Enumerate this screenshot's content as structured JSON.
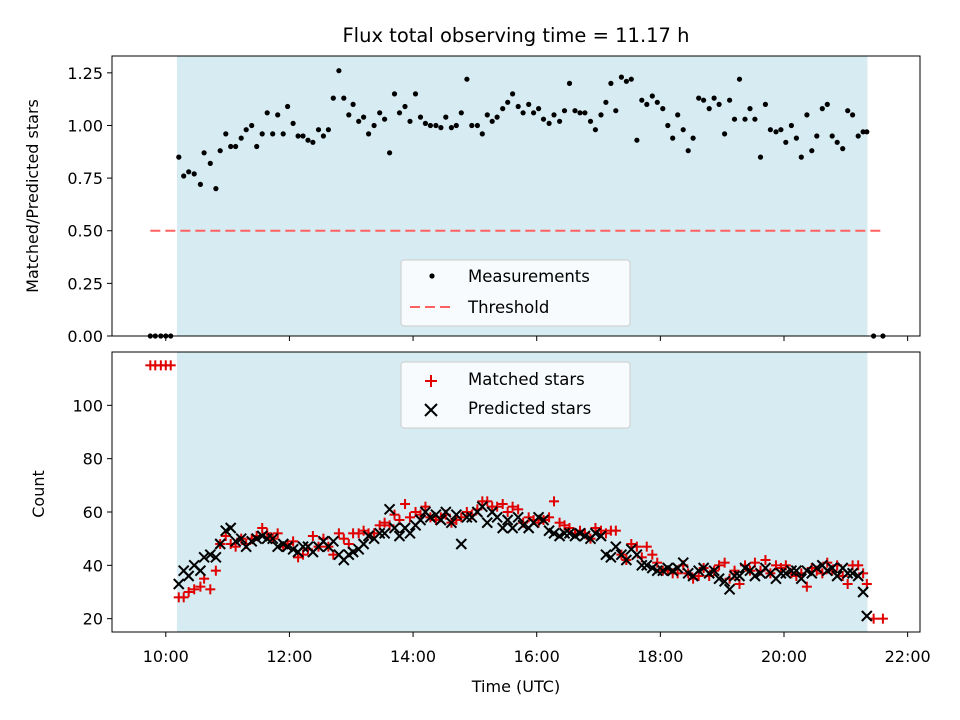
{
  "title": "Flux total observing time = 11.17 h",
  "xlabel": "Time (UTC)",
  "x_ticks": [
    "10:00",
    "12:00",
    "14:00",
    "16:00",
    "18:00",
    "20:00",
    "22:00"
  ],
  "colors": {
    "shade": "#add8e6",
    "measurement": "#000000",
    "threshold": "#ff6060",
    "matched": "#e00000",
    "predicted": "#000000"
  },
  "chart_data": [
    {
      "type": "scatter",
      "ylabel": "Matched/Predicted stars",
      "xlim_hours": [
        9.13,
        22.2
      ],
      "ylim": [
        0,
        1.33
      ],
      "y_ticks": [
        "0.00",
        "0.25",
        "0.50",
        "0.75",
        "1.00",
        "1.25"
      ],
      "y_tick_values": [
        0,
        0.25,
        0.5,
        0.75,
        1.0,
        1.25
      ],
      "observing_window_hours": [
        10.18,
        21.35
      ],
      "legend_placement": "lower center",
      "legend": [
        "Measurements",
        "Threshold"
      ],
      "threshold": {
        "name": "Threshold",
        "value": 0.5,
        "x_range_hours": [
          9.75,
          21.6
        ]
      },
      "series": [
        {
          "name": "Measurements",
          "x_hours": [
            9.75,
            9.83,
            9.92,
            10.0,
            10.08,
            10.21,
            10.29,
            10.37,
            10.46,
            10.56,
            10.62,
            10.72,
            10.81,
            10.88,
            10.97,
            11.05,
            11.13,
            11.22,
            11.3,
            11.39,
            11.47,
            11.56,
            11.64,
            11.73,
            11.81,
            11.9,
            11.97,
            12.06,
            12.14,
            12.22,
            12.3,
            12.38,
            12.47,
            12.55,
            12.63,
            12.71,
            12.8,
            12.88,
            12.96,
            13.03,
            13.12,
            13.2,
            13.28,
            13.37,
            13.46,
            13.54,
            13.62,
            13.7,
            13.78,
            13.87,
            13.95,
            14.04,
            14.12,
            14.2,
            14.28,
            14.37,
            14.45,
            14.53,
            14.62,
            14.7,
            14.78,
            14.87,
            14.95,
            15.04,
            15.12,
            15.2,
            15.28,
            15.36,
            15.45,
            15.53,
            15.61,
            15.7,
            15.78,
            15.87,
            15.95,
            16.03,
            16.11,
            16.2,
            16.28,
            16.37,
            16.45,
            16.53,
            16.62,
            16.7,
            16.78,
            16.87,
            16.95,
            17.04,
            17.12,
            17.2,
            17.28,
            17.37,
            17.45,
            17.53,
            17.62,
            17.7,
            17.78,
            17.87,
            17.95,
            18.04,
            18.12,
            18.2,
            18.28,
            18.37,
            18.45,
            18.53,
            18.62,
            18.7,
            18.79,
            18.87,
            18.95,
            19.04,
            19.12,
            19.2,
            19.28,
            19.37,
            19.45,
            19.53,
            19.62,
            19.7,
            19.78,
            19.87,
            19.95,
            20.03,
            20.12,
            20.2,
            20.28,
            20.37,
            20.45,
            20.53,
            20.62,
            20.7,
            20.78,
            20.86,
            20.95,
            21.03,
            21.11,
            21.2,
            21.28,
            21.34,
            21.45,
            21.6
          ],
          "values": [
            0,
            0,
            0,
            0,
            0,
            0.85,
            0.76,
            0.78,
            0.77,
            0.72,
            0.87,
            0.82,
            0.7,
            0.88,
            0.96,
            0.9,
            0.9,
            0.94,
            0.98,
            1.0,
            0.9,
            0.96,
            1.06,
            0.96,
            1.05,
            0.96,
            1.09,
            1.01,
            0.95,
            0.95,
            0.93,
            0.92,
            0.98,
            0.95,
            0.98,
            1.13,
            1.26,
            1.13,
            1.05,
            1.1,
            1.02,
            1.04,
            0.96,
            1.0,
            1.06,
            1.03,
            0.87,
            1.15,
            1.06,
            1.09,
            1.02,
            1.15,
            1.04,
            1.01,
            1.0,
            1.0,
            0.99,
            1.04,
            0.99,
            1.0,
            1.06,
            1.22,
            1.0,
            1.0,
            0.96,
            1.05,
            1.02,
            1.04,
            1.08,
            1.11,
            1.15,
            1.09,
            1.06,
            1.1,
            1.06,
            1.08,
            1.03,
            1.01,
            1.05,
            1.02,
            1.07,
            1.2,
            1.07,
            1.06,
            1.06,
            1.02,
            0.98,
            1.05,
            1.11,
            1.2,
            1.07,
            1.23,
            1.21,
            1.22,
            0.93,
            1.12,
            1.1,
            1.14,
            1.11,
            1.08,
            1.0,
            0.94,
            1.05,
            0.98,
            0.88,
            0.94,
            1.13,
            1.12,
            1.08,
            1.13,
            1.1,
            0.96,
            1.12,
            1.03,
            1.22,
            1.03,
            1.08,
            1.03,
            0.85,
            1.1,
            0.98,
            0.97,
            0.98,
            0.92,
            1.0,
            0.94,
            0.85,
            1.05,
            0.88,
            0.95,
            1.08,
            1.1,
            0.95,
            0.92,
            0.89,
            1.07,
            1.05,
            0.95,
            0.97,
            0.97,
            0.0,
            0.0
          ]
        }
      ]
    },
    {
      "type": "scatter",
      "ylabel": "Count",
      "xlim_hours": [
        9.13,
        22.2
      ],
      "ylim": [
        15,
        120
      ],
      "y_ticks": [
        "20",
        "40",
        "60",
        "80",
        "100"
      ],
      "y_tick_values": [
        20,
        40,
        60,
        80,
        100
      ],
      "observing_window_hours": [
        10.18,
        21.35
      ],
      "legend_placement": "upper center",
      "legend": [
        "Matched stars",
        "Predicted stars"
      ],
      "series": [
        {
          "name": "Matched stars",
          "x_hours": [
            9.75,
            9.83,
            9.92,
            10.0,
            10.08,
            10.21,
            10.29,
            10.37,
            10.46,
            10.56,
            10.62,
            10.72,
            10.81,
            10.88,
            10.97,
            11.05,
            11.13,
            11.22,
            11.3,
            11.39,
            11.47,
            11.56,
            11.64,
            11.73,
            11.81,
            11.9,
            11.97,
            12.06,
            12.14,
            12.22,
            12.3,
            12.38,
            12.47,
            12.55,
            12.63,
            12.71,
            12.8,
            12.88,
            12.96,
            13.03,
            13.12,
            13.2,
            13.28,
            13.37,
            13.46,
            13.54,
            13.62,
            13.7,
            13.78,
            13.87,
            13.95,
            14.04,
            14.12,
            14.2,
            14.28,
            14.37,
            14.45,
            14.53,
            14.62,
            14.7,
            14.78,
            14.87,
            14.95,
            15.04,
            15.12,
            15.2,
            15.28,
            15.36,
            15.45,
            15.53,
            15.61,
            15.7,
            15.78,
            15.87,
            15.95,
            16.03,
            16.11,
            16.2,
            16.28,
            16.37,
            16.45,
            16.53,
            16.62,
            16.7,
            16.78,
            16.87,
            16.95,
            17.04,
            17.12,
            17.2,
            17.28,
            17.37,
            17.45,
            17.53,
            17.62,
            17.7,
            17.78,
            17.87,
            17.95,
            18.04,
            18.12,
            18.2,
            18.28,
            18.37,
            18.45,
            18.53,
            18.62,
            18.7,
            18.79,
            18.87,
            18.95,
            19.04,
            19.12,
            19.2,
            19.28,
            19.37,
            19.45,
            19.53,
            19.62,
            19.7,
            19.78,
            19.87,
            19.95,
            20.03,
            20.12,
            20.2,
            20.28,
            20.37,
            20.45,
            20.53,
            20.62,
            20.7,
            20.78,
            20.86,
            20.95,
            21.03,
            21.11,
            21.2,
            21.28,
            21.34,
            21.45,
            21.6
          ],
          "values": [
            115,
            115,
            115,
            115,
            115,
            28,
            28,
            30,
            31,
            32,
            35,
            31,
            38,
            48,
            51,
            48,
            47,
            50,
            48,
            50,
            51,
            54,
            52,
            50,
            52,
            47,
            48,
            49,
            43,
            44,
            46,
            51,
            47,
            50,
            47,
            44,
            52,
            50,
            48,
            52,
            52,
            53,
            52,
            52,
            55,
            56,
            55,
            59,
            57,
            63,
            58,
            60,
            59,
            62,
            58,
            57,
            58,
            59,
            56,
            57,
            58,
            60,
            59,
            61,
            64,
            64,
            62,
            62,
            63,
            60,
            62,
            61,
            56,
            58,
            57,
            56,
            57,
            58,
            64,
            56,
            55,
            54,
            52,
            53,
            52,
            50,
            54,
            53,
            52,
            53,
            53,
            44,
            42,
            48,
            47,
            43,
            47,
            44,
            41,
            38,
            38,
            37,
            37,
            40,
            37,
            35,
            36,
            39,
            36,
            38,
            40,
            41,
            35,
            38,
            33,
            40,
            38,
            41,
            38,
            42,
            37,
            40,
            39,
            40,
            37,
            36,
            37,
            32,
            39,
            38,
            37,
            41,
            38,
            40,
            36,
            33,
            40,
            40,
            37,
            33,
            20,
            20
          ],
          "color": "#e00000"
        },
        {
          "name": "Predicted stars",
          "x_hours": [
            10.21,
            10.29,
            10.37,
            10.46,
            10.56,
            10.62,
            10.72,
            10.81,
            10.88,
            10.97,
            11.05,
            11.13,
            11.22,
            11.3,
            11.39,
            11.47,
            11.56,
            11.64,
            11.73,
            11.81,
            11.9,
            11.97,
            12.06,
            12.14,
            12.22,
            12.3,
            12.38,
            12.47,
            12.55,
            12.63,
            12.71,
            12.8,
            12.88,
            12.96,
            13.03,
            13.12,
            13.2,
            13.28,
            13.37,
            13.46,
            13.54,
            13.62,
            13.7,
            13.78,
            13.87,
            13.95,
            14.04,
            14.12,
            14.2,
            14.28,
            14.37,
            14.45,
            14.53,
            14.62,
            14.7,
            14.78,
            14.87,
            14.95,
            15.04,
            15.12,
            15.2,
            15.28,
            15.36,
            15.45,
            15.53,
            15.61,
            15.7,
            15.78,
            15.87,
            15.95,
            16.03,
            16.11,
            16.2,
            16.28,
            16.37,
            16.45,
            16.53,
            16.62,
            16.7,
            16.78,
            16.87,
            16.95,
            17.04,
            17.12,
            17.2,
            17.28,
            17.37,
            17.45,
            17.53,
            17.62,
            17.7,
            17.78,
            17.87,
            17.95,
            18.04,
            18.12,
            18.2,
            18.28,
            18.37,
            18.45,
            18.53,
            18.62,
            18.7,
            18.79,
            18.87,
            18.95,
            19.04,
            19.12,
            19.2,
            19.28,
            19.37,
            19.45,
            19.53,
            19.62,
            19.7,
            19.78,
            19.87,
            19.95,
            20.03,
            20.12,
            20.2,
            20.28,
            20.37,
            20.45,
            20.53,
            20.62,
            20.7,
            20.78,
            20.86,
            20.95,
            21.03,
            21.11,
            21.2,
            21.28,
            21.34
          ],
          "values": [
            33,
            38,
            36,
            40,
            38,
            43,
            44,
            43,
            48,
            53,
            54,
            49,
            50,
            47,
            49,
            50,
            51,
            50,
            50,
            47,
            48,
            47,
            46,
            45,
            47,
            47,
            45,
            47,
            49,
            47,
            49,
            44,
            42,
            44,
            45,
            46,
            48,
            51,
            50,
            52,
            52,
            61,
            54,
            51,
            54,
            52,
            55,
            57,
            60,
            58,
            59,
            57,
            60,
            56,
            59,
            48,
            58,
            58,
            60,
            62,
            56,
            60,
            58,
            54,
            57,
            54,
            58,
            55,
            54,
            56,
            58,
            57,
            53,
            52,
            51,
            52,
            52,
            51,
            52,
            51,
            50,
            52,
            51,
            44,
            43,
            47,
            44,
            42,
            46,
            44,
            40,
            40,
            39,
            38,
            38,
            39,
            38,
            39,
            41,
            37,
            36,
            38,
            39,
            37,
            38,
            35,
            34,
            31,
            36,
            36,
            39,
            38,
            36,
            37,
            39,
            37,
            35,
            37,
            37,
            38,
            38,
            35,
            38,
            37,
            39,
            40,
            38,
            39,
            36,
            39,
            37,
            37,
            36,
            30,
            21
          ],
          "color": "#000000"
        }
      ]
    }
  ]
}
